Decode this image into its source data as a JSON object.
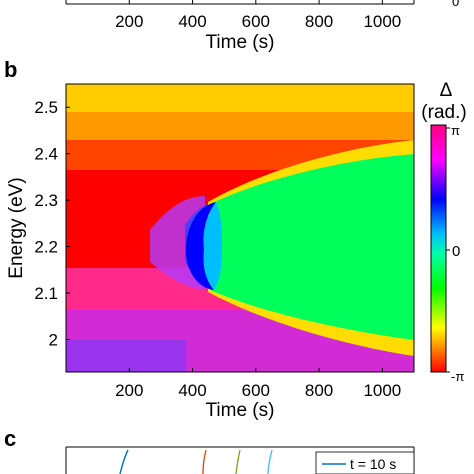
{
  "panels": {
    "top_partial": {
      "label": "",
      "xtick_labels": [
        "200",
        "400",
        "600",
        "800",
        "1000"
      ],
      "xlabel": "Time (s)",
      "corner_tick_label": "0"
    },
    "b": {
      "label": "b",
      "colorbar_symbol": "Δ",
      "colorbar_unit": "(rad.)",
      "colorbar_ticks": [
        "π",
        "0",
        "-π"
      ]
    },
    "c": {
      "label": "c",
      "legend_entry": "t = 10 s",
      "legend_color": "#0072BD",
      "line_colors": [
        "#0072BD",
        "#D95319",
        "#77AC30",
        "#4DBEEE"
      ]
    }
  },
  "chart_data": [
    {
      "type": "heatmap",
      "panel": "b",
      "title": "",
      "xlabel": "Time (s)",
      "ylabel": "Energy (eV)",
      "xlim": [
        0,
        1100
      ],
      "ylim": [
        1.93,
        2.55
      ],
      "xticks": [
        200,
        400,
        600,
        800,
        1000
      ],
      "yticks": [
        2.0,
        2.1,
        2.2,
        2.3,
        2.4,
        2.5
      ],
      "colormap": "hsv",
      "color_range": [
        -3.1416,
        3.1416
      ],
      "colorbar_label": "Δ (rad.)",
      "features": {
        "singularity_time": 470,
        "singularity_energy": 2.21,
        "interior_band_energies": [
          2.12,
          2.3
        ],
        "interior_band_right_energies": [
          2.06,
          2.36
        ],
        "interior_phase_rad": 1.0,
        "upper_region_phase_rad": 2.8,
        "lower_region_phase_rad": -2.6
      }
    },
    {
      "type": "line",
      "panel": "c",
      "partial": true,
      "series": [
        {
          "name": "t = 10 s"
        }
      ]
    }
  ]
}
